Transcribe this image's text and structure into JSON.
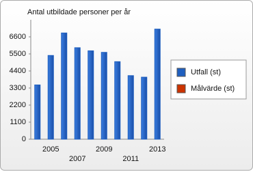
{
  "chart_data": {
    "type": "bar",
    "title": "Antal utbildade personer per år",
    "categories": [
      null,
      "2005",
      null,
      "2007",
      null,
      "2009",
      null,
      "2011",
      null,
      "2013"
    ],
    "series": [
      {
        "name": "Utfall (st)",
        "color": "#1f5fbf",
        "values": [
          3500,
          5400,
          6850,
          5900,
          5700,
          5600,
          5000,
          4100,
          4000,
          7100
        ]
      },
      {
        "name": "Målvärde (st)",
        "color": "#cc3300",
        "values": [
          null,
          null,
          null,
          null,
          null,
          null,
          null,
          null,
          null,
          null
        ]
      }
    ],
    "ylim": [
      0,
      7700
    ],
    "yticks": [
      0,
      1100,
      2200,
      3300,
      4400,
      5500,
      6600
    ],
    "grid": false,
    "legend": "right"
  }
}
